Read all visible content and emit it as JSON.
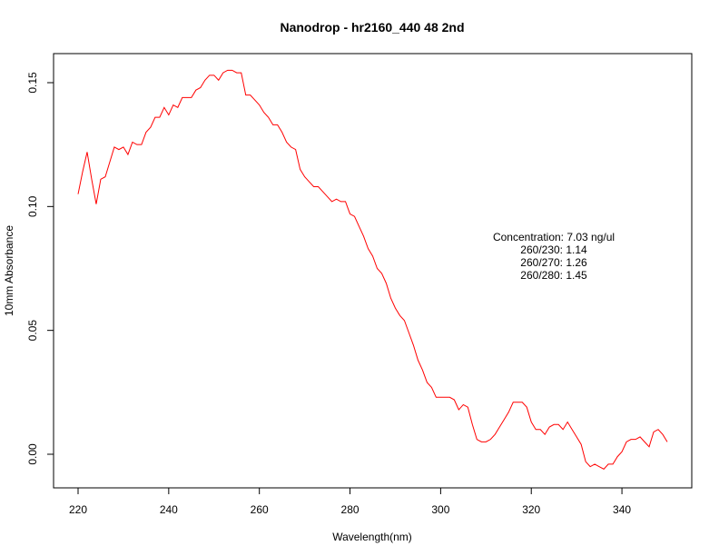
{
  "chart_data": {
    "type": "line",
    "title": "Nanodrop - hr2160_440 48 2nd",
    "xlabel": "Wavelength(nm)",
    "ylabel": "10mm Absorbance",
    "xlim": [
      220,
      350
    ],
    "ylim": [
      -0.006,
      0.157
    ],
    "x_ticks": [
      220,
      240,
      260,
      280,
      300,
      320,
      340
    ],
    "y_ticks": [
      0.0,
      0.05,
      0.1,
      0.15
    ],
    "x_tick_labels": [
      "220",
      "240",
      "260",
      "280",
      "300",
      "320",
      "340"
    ],
    "y_tick_labels": [
      "0.00",
      "0.05",
      "0.10",
      "0.15"
    ],
    "grid": false,
    "legend": "none",
    "series": [
      {
        "color": "#ff0000",
        "x": [
          220,
          221,
          222,
          223,
          224,
          225,
          226,
          227,
          228,
          229,
          230,
          231,
          232,
          233,
          234,
          235,
          236,
          237,
          238,
          239,
          240,
          241,
          242,
          243,
          244,
          245,
          246,
          247,
          248,
          249,
          250,
          251,
          252,
          253,
          254,
          255,
          256,
          257,
          258,
          259,
          260,
          261,
          262,
          263,
          264,
          265,
          266,
          267,
          268,
          269,
          270,
          271,
          272,
          273,
          274,
          275,
          276,
          277,
          278,
          279,
          280,
          281,
          282,
          283,
          284,
          285,
          286,
          287,
          288,
          289,
          290,
          291,
          292,
          293,
          294,
          295,
          296,
          297,
          298,
          299,
          300,
          301,
          302,
          303,
          304,
          305,
          306,
          307,
          308,
          309,
          310,
          311,
          312,
          313,
          314,
          315,
          316,
          317,
          318,
          319,
          320,
          321,
          322,
          323,
          324,
          325,
          326,
          327,
          328,
          329,
          330,
          331,
          332,
          333,
          334,
          335,
          336,
          337,
          338,
          339,
          340,
          341,
          342,
          343,
          344,
          345,
          346,
          347,
          348,
          349,
          350
        ],
        "y": [
          0.105,
          0.114,
          0.122,
          0.111,
          0.101,
          0.111,
          0.112,
          0.118,
          0.124,
          0.123,
          0.124,
          0.121,
          0.126,
          0.125,
          0.125,
          0.13,
          0.132,
          0.136,
          0.136,
          0.14,
          0.137,
          0.141,
          0.14,
          0.144,
          0.144,
          0.144,
          0.147,
          0.148,
          0.151,
          0.153,
          0.153,
          0.151,
          0.154,
          0.155,
          0.155,
          0.154,
          0.154,
          0.145,
          0.145,
          0.143,
          0.141,
          0.138,
          0.136,
          0.133,
          0.133,
          0.13,
          0.126,
          0.124,
          0.123,
          0.115,
          0.112,
          0.11,
          0.108,
          0.108,
          0.106,
          0.104,
          0.102,
          0.103,
          0.102,
          0.102,
          0.097,
          0.096,
          0.092,
          0.088,
          0.083,
          0.08,
          0.075,
          0.073,
          0.069,
          0.063,
          0.059,
          0.056,
          0.054,
          0.049,
          0.044,
          0.038,
          0.034,
          0.029,
          0.027,
          0.023,
          0.023,
          0.023,
          0.023,
          0.022,
          0.018,
          0.02,
          0.019,
          0.012,
          0.006,
          0.005,
          0.005,
          0.006,
          0.008,
          0.011,
          0.014,
          0.017,
          0.021,
          0.021,
          0.021,
          0.019,
          0.013,
          0.01,
          0.01,
          0.008,
          0.011,
          0.012,
          0.012,
          0.01,
          0.013,
          0.01,
          0.007,
          0.004,
          -0.003,
          -0.005,
          -0.004,
          -0.005,
          -0.006,
          -0.004,
          -0.004,
          -0.001,
          0.001,
          0.005,
          0.006,
          0.006,
          0.007,
          0.005,
          0.003,
          0.009,
          0.01,
          0.008,
          0.005
        ]
      }
    ],
    "annotations": [
      "Concentration: 7.03 ng/ul",
      "260/230: 1.14",
      "260/270: 1.26",
      "260/280: 1.45"
    ]
  }
}
